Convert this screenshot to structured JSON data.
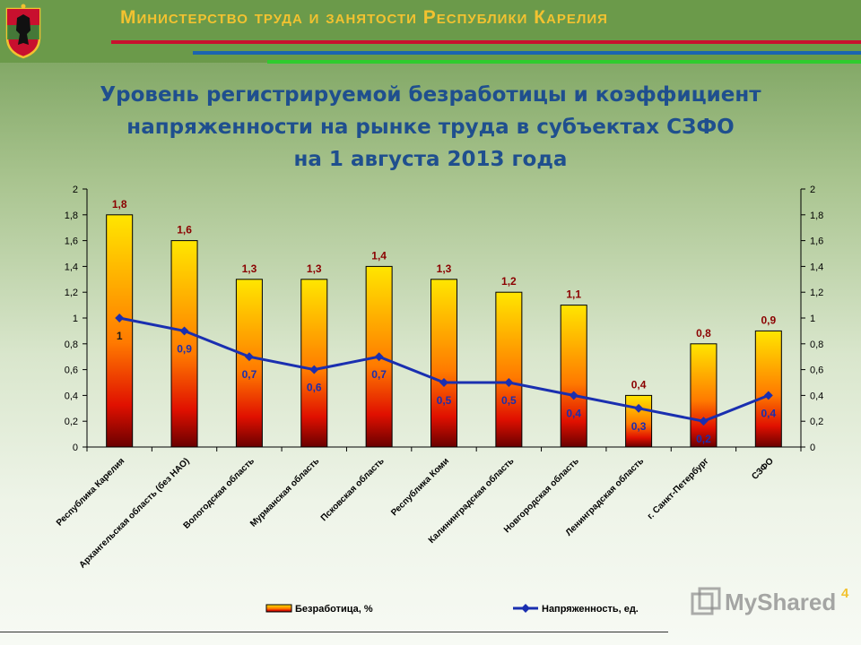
{
  "header": {
    "ministry": "Министерство труда и занятости Республики Карелия"
  },
  "page_number": "4",
  "watermark": "MyShared",
  "colors": {
    "bar_top": "#ffd800",
    "bar_mid": "#ff6a00",
    "bar_bottom": "#7a0000",
    "line": "#1a2fb0",
    "bar_label": "#8b0000",
    "line_label": "#1a2fb0"
  },
  "chart_data": {
    "type": "bar",
    "title": "Уровень регистрируемой безработицы и коэффициент напряженности на рынке труда в субъектах СЗФО на 1 августа 2013 года",
    "title_lines": [
      "Уровень регистрируемой безработицы и коэффициент",
      "напряженности на рынке труда в субъектах СЗФО",
      "на 1 августа 2013 года"
    ],
    "categories": [
      "Республика Карелия",
      "Архангельская область (без НАО)",
      "Вологодская область",
      "Мурманская область",
      "Псковская область",
      "Республика Коми",
      "Калининградская область",
      "Новгородская область",
      "Ленинградская область",
      "г. Санкт-Петербург",
      "СЗФО"
    ],
    "series": [
      {
        "name": "Безработица, %",
        "type": "bar",
        "values": [
          1.8,
          1.6,
          1.3,
          1.3,
          1.4,
          1.3,
          1.2,
          1.1,
          0.4,
          0.8,
          0.9
        ]
      },
      {
        "name": "Напряженность, ед.",
        "type": "line",
        "values": [
          1.0,
          0.9,
          0.7,
          0.6,
          0.7,
          0.5,
          0.5,
          0.4,
          0.3,
          0.2,
          0.4
        ]
      }
    ],
    "bar_labels": [
      "1,8",
      "1,6",
      "1,3",
      "1,3",
      "1,4",
      "1,3",
      "1,2",
      "1,1",
      "0,4",
      "0,8",
      "0,9"
    ],
    "line_labels": [
      "1",
      "0,9",
      "0,7",
      "0,6",
      "0,7",
      "0,5",
      "0,5",
      "0,4",
      "0,3",
      "0,2",
      "0,4"
    ],
    "yticks": [
      "0",
      "0,2",
      "0,4",
      "0,6",
      "0,8",
      "1",
      "1,2",
      "1,4",
      "1,6",
      "1,8",
      "2"
    ],
    "ylim": [
      0,
      2
    ],
    "y2lim": [
      0,
      2
    ],
    "grid": false,
    "legend": "bottom"
  }
}
